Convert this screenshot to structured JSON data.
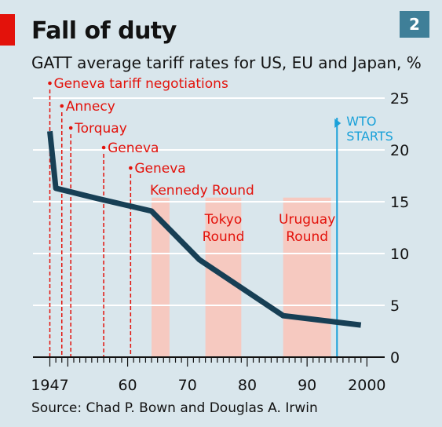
{
  "header": {
    "title": "Fall of duty",
    "subtitle": "GATT average tariff rates for US, EU and Japan, %",
    "badge": "2"
  },
  "footer": {
    "source": "Source: Chad P. Bown and Douglas A. Irwin"
  },
  "colors": {
    "background": "#d9e6ec",
    "line": "#173f55",
    "rounds": "#e3120b",
    "shade": "#f6c9c0",
    "wto": "#1aa1d9",
    "badge": "#3f7f98"
  },
  "chart_data": {
    "type": "line",
    "title": "Fall of duty",
    "subtitle": "GATT average tariff rates for US, EU and Japan, %",
    "xlim": [
      1945,
      2001
    ],
    "ylim": [
      0,
      25
    ],
    "x_ticks": [
      1947,
      1960,
      1970,
      1980,
      1990,
      2000
    ],
    "x_tick_labels": [
      "1947",
      "60",
      "70",
      "80",
      "90",
      "2000"
    ],
    "y_ticks": [
      0,
      5,
      10,
      15,
      20,
      25
    ],
    "y_tick_labels": [
      "0",
      "5",
      "10",
      "15",
      "20",
      "25"
    ],
    "grid": true,
    "series": [
      {
        "points": [
          {
            "x": 1947,
            "y": 21.8
          },
          {
            "x": 1948,
            "y": 16.3
          },
          {
            "x": 1955,
            "y": 15.3
          },
          {
            "x": 1964,
            "y": 14.1
          },
          {
            "x": 1972,
            "y": 9.4
          },
          {
            "x": 1986,
            "y": 4.0
          },
          {
            "x": 1999,
            "y": 3.1
          }
        ]
      }
    ],
    "events": [
      {
        "label": "Geneva tariff negotiations",
        "year": 1947
      },
      {
        "label": "Annecy",
        "year": 1949
      },
      {
        "label": "Torquay",
        "year": 1950.5
      },
      {
        "label": "Geneva",
        "year": 1956
      },
      {
        "label": "Geneva",
        "year": 1960.5
      }
    ],
    "rounds": [
      {
        "lines": [
          "Kennedy Round"
        ],
        "start": 1964,
        "end": 1967
      },
      {
        "lines": [
          "Tokyo",
          "Round"
        ],
        "start": 1973,
        "end": 1979
      },
      {
        "lines": [
          "Uruguay",
          "Round"
        ],
        "start": 1986,
        "end": 1994
      }
    ],
    "wto": {
      "lines": [
        "WTO",
        "STARTS"
      ],
      "year": 1995
    }
  }
}
